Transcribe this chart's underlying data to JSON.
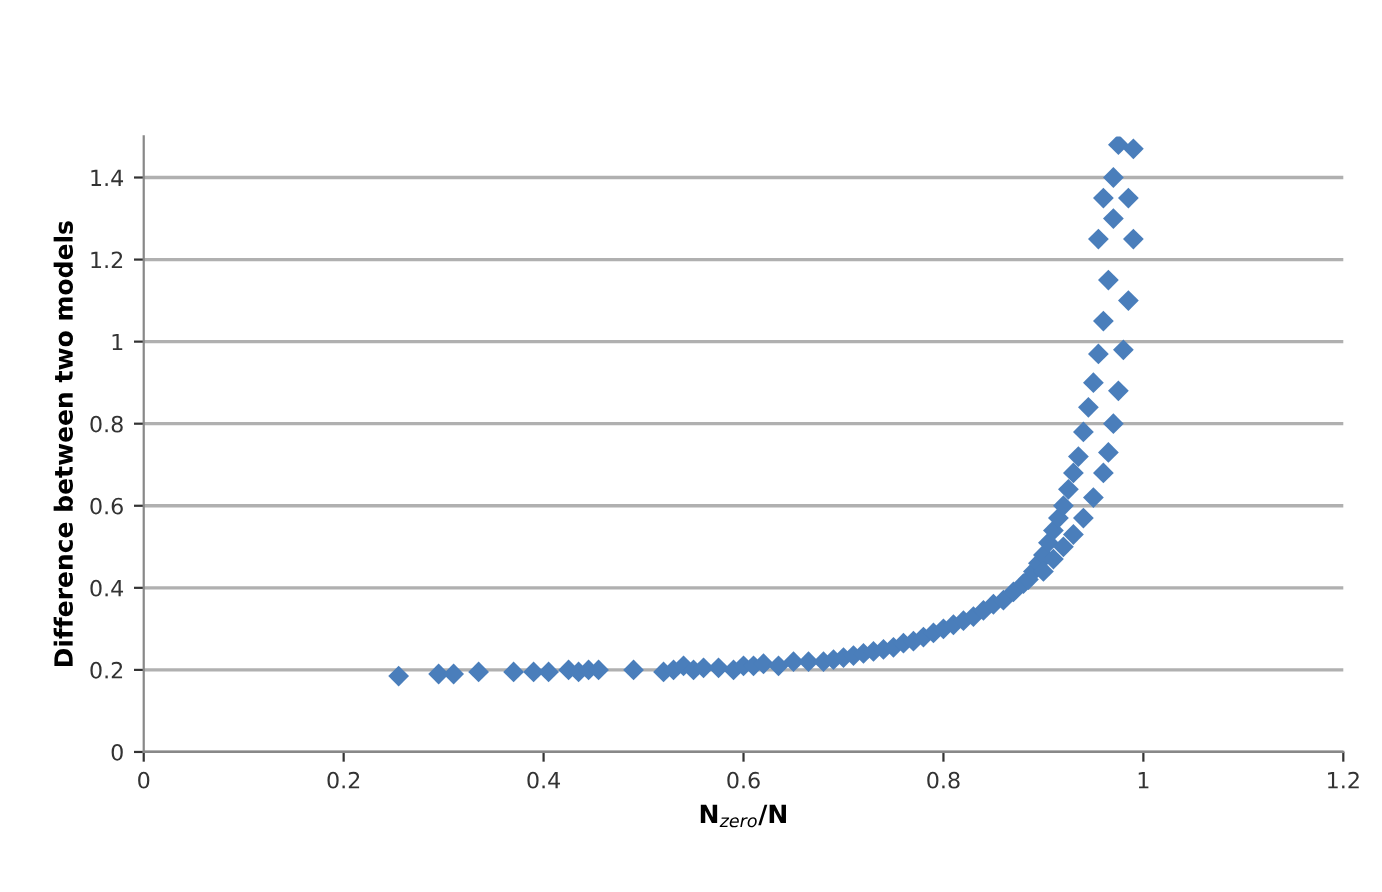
{
  "chart_data": {
    "type": "scatter",
    "xlabel": "N$_{zero}$/N",
    "ylabel": "Difference between two models",
    "marker": "diamond",
    "grid": "y",
    "xlim": [
      0,
      1.2
    ],
    "ylim": [
      0,
      1.5
    ],
    "xticks": [
      0,
      0.2,
      0.4,
      0.6,
      0.8,
      1,
      1.2
    ],
    "yticks": [
      0,
      0.2,
      0.4,
      0.6,
      0.8,
      1,
      1.2,
      1.4
    ],
    "series": [
      {
        "color": "#4a7ebb",
        "x": [
          0.255,
          0.295,
          0.31,
          0.335,
          0.37,
          0.39,
          0.405,
          0.425,
          0.435,
          0.445,
          0.455,
          0.49,
          0.52,
          0.53,
          0.54,
          0.55,
          0.56,
          0.575,
          0.59,
          0.6,
          0.61,
          0.62,
          0.635,
          0.65,
          0.665,
          0.68,
          0.69,
          0.7,
          0.71,
          0.72,
          0.73,
          0.74,
          0.75,
          0.76,
          0.77,
          0.78,
          0.79,
          0.8,
          0.81,
          0.82,
          0.83,
          0.84,
          0.85,
          0.86,
          0.87,
          0.88,
          0.885,
          0.89,
          0.895,
          0.9,
          0.905,
          0.91,
          0.915,
          0.92,
          0.925,
          0.93,
          0.935,
          0.94,
          0.945,
          0.95,
          0.955,
          0.96,
          0.965,
          0.97,
          0.975,
          0.9,
          0.91,
          0.92,
          0.93,
          0.94,
          0.95,
          0.96,
          0.965,
          0.97,
          0.975,
          0.98,
          0.985,
          0.99,
          0.99,
          0.985,
          0.97,
          0.96,
          0.955
        ],
        "values": [
          0.185,
          0.19,
          0.19,
          0.195,
          0.195,
          0.195,
          0.195,
          0.2,
          0.195,
          0.2,
          0.2,
          0.2,
          0.195,
          0.2,
          0.21,
          0.2,
          0.205,
          0.205,
          0.2,
          0.21,
          0.21,
          0.215,
          0.21,
          0.22,
          0.22,
          0.22,
          0.225,
          0.23,
          0.235,
          0.24,
          0.245,
          0.25,
          0.255,
          0.265,
          0.27,
          0.28,
          0.29,
          0.3,
          0.31,
          0.32,
          0.33,
          0.345,
          0.36,
          0.37,
          0.39,
          0.41,
          0.42,
          0.44,
          0.46,
          0.48,
          0.51,
          0.54,
          0.57,
          0.6,
          0.64,
          0.68,
          0.72,
          0.78,
          0.84,
          0.9,
          0.97,
          1.05,
          1.15,
          1.3,
          1.48,
          0.44,
          0.47,
          0.5,
          0.53,
          0.57,
          0.62,
          0.68,
          0.73,
          0.8,
          0.88,
          0.98,
          1.1,
          1.25,
          1.47,
          1.35,
          1.4,
          1.35,
          1.25
        ]
      }
    ]
  }
}
